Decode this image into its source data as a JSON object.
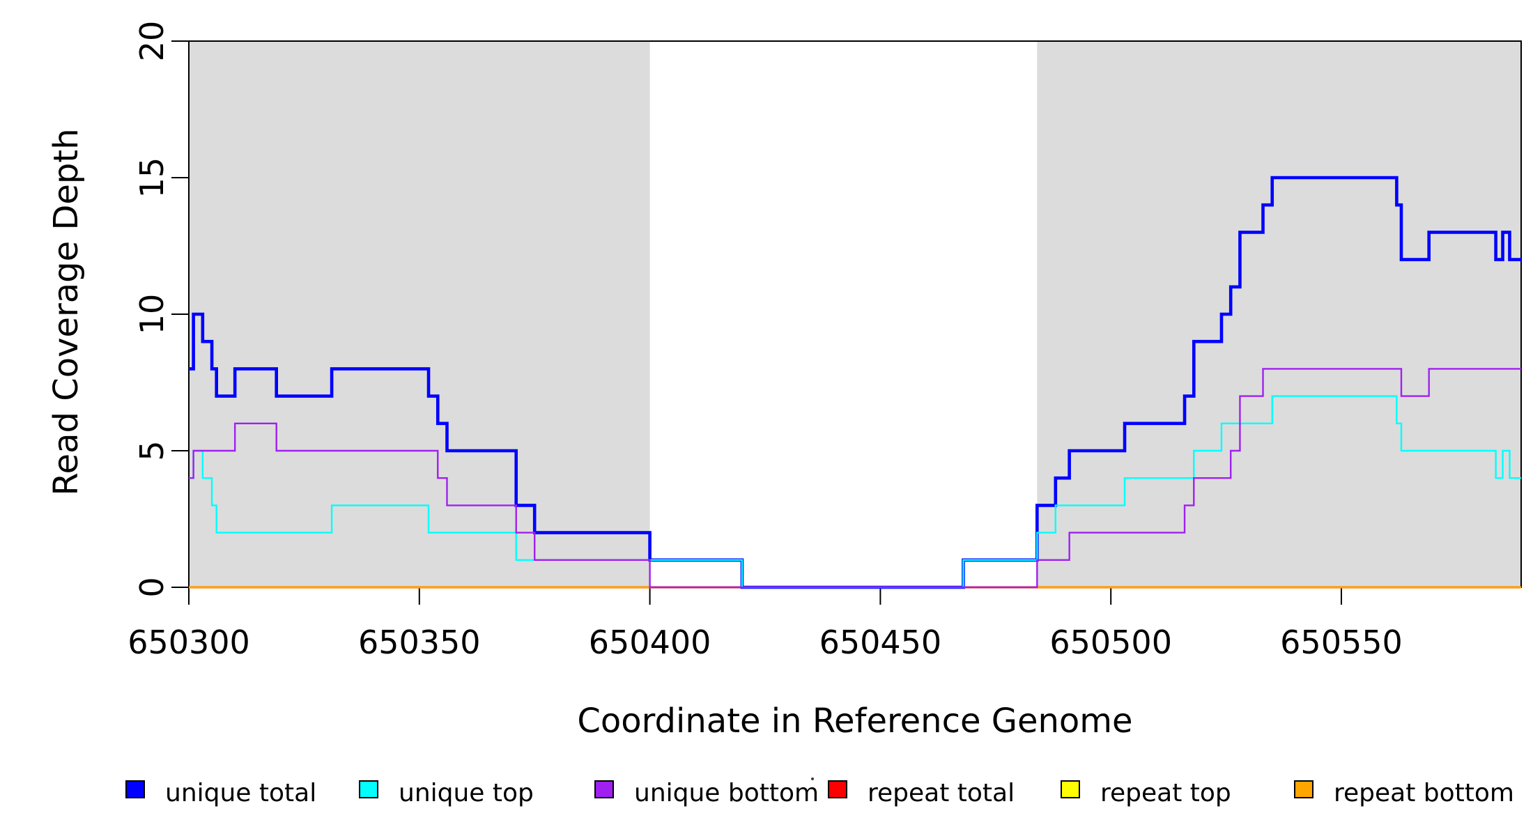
{
  "figure": {
    "x_axis_title": "Coordinate in Reference Genome",
    "y_axis_title": "Read Coverage Depth"
  },
  "legend": [
    {
      "label": "unique total",
      "color": "#0000FF"
    },
    {
      "label": "unique top",
      "color": "#00FFFF"
    },
    {
      "label": "unique bottom",
      "color": "#A020F0"
    },
    {
      "label": "repeat total",
      "color": "#FF0000"
    },
    {
      "label": "repeat top",
      "color": "#FFFF00"
    },
    {
      "label": "repeat bottom",
      "color": "#FFA500"
    }
  ],
  "chart_data": {
    "type": "line",
    "step": true,
    "xlabel": "Coordinate in Reference Genome",
    "ylabel": "Read Coverage Depth",
    "xlim": [
      650300,
      650589
    ],
    "ylim": [
      0,
      20
    ],
    "grid": false,
    "legend_position": "bottom",
    "x_ticks": [
      650300,
      650350,
      650400,
      650450,
      650500,
      650550
    ],
    "x_tick_labels": [
      "650300",
      "650350",
      "650400",
      "650450",
      "650500",
      "650550"
    ],
    "y_ticks": [
      0,
      5,
      10,
      15,
      20
    ],
    "y_tick_labels": [
      "0",
      "5",
      "10",
      "15",
      "20"
    ],
    "shade_color": "#DCDCDC",
    "shaded_regions": [
      {
        "from": 650300,
        "to": 650400
      },
      {
        "from": 650484,
        "to": 650589
      }
    ],
    "series": [
      {
        "name": "repeat top",
        "color": "#FFFF00",
        "width": 2.4,
        "points": [
          [
            650300,
            0
          ]
        ]
      },
      {
        "name": "repeat total",
        "color": "#FF0000",
        "width": 3.2,
        "points": [
          [
            650300,
            0
          ]
        ]
      },
      {
        "name": "repeat bottom",
        "color": "#FFA500",
        "width": 3.0,
        "points": [
          [
            650300,
            0
          ]
        ]
      },
      {
        "name": "unique total",
        "color": "#0000FF",
        "width": 4.6,
        "points": [
          [
            650300,
            8
          ],
          [
            650301,
            10
          ],
          [
            650303,
            9
          ],
          [
            650305,
            8
          ],
          [
            650306,
            7
          ],
          [
            650310,
            8
          ],
          [
            650319,
            7
          ],
          [
            650331,
            8
          ],
          [
            650352,
            7
          ],
          [
            650354,
            6
          ],
          [
            650356,
            5
          ],
          [
            650371,
            3
          ],
          [
            650375,
            2
          ],
          [
            650400,
            1
          ],
          [
            650420,
            0
          ],
          [
            650468,
            1
          ],
          [
            650484,
            3
          ],
          [
            650488,
            4
          ],
          [
            650491,
            5
          ],
          [
            650503,
            6
          ],
          [
            650516,
            7
          ],
          [
            650518,
            9
          ],
          [
            650524,
            10
          ],
          [
            650526,
            11
          ],
          [
            650528,
            13
          ],
          [
            650533,
            14
          ],
          [
            650535,
            15
          ],
          [
            650562,
            14
          ],
          [
            650563,
            12
          ],
          [
            650569,
            13
          ],
          [
            650583.5,
            12
          ],
          [
            650585,
            13
          ],
          [
            650586.5,
            12
          ]
        ]
      },
      {
        "name": "unique top",
        "color": "#00FFFF",
        "width": 2.4,
        "points": [
          [
            650300,
            4
          ],
          [
            650301,
            5
          ],
          [
            650303,
            4
          ],
          [
            650305,
            3
          ],
          [
            650306,
            2
          ],
          [
            650331,
            3
          ],
          [
            650352,
            2
          ],
          [
            650371,
            1
          ],
          [
            650420,
            0
          ],
          [
            650468,
            1
          ],
          [
            650484,
            2
          ],
          [
            650488,
            3
          ],
          [
            650503,
            4
          ],
          [
            650518,
            5
          ],
          [
            650524,
            6
          ],
          [
            650535,
            7
          ],
          [
            650562,
            6
          ],
          [
            650563,
            5
          ],
          [
            650583.5,
            4
          ],
          [
            650585,
            5
          ],
          [
            650586.5,
            4
          ]
        ]
      },
      {
        "name": "unique bottom",
        "color": "#A020F0",
        "width": 2.4,
        "points": [
          [
            650300,
            4
          ],
          [
            650301,
            5
          ],
          [
            650310,
            6
          ],
          [
            650319,
            5
          ],
          [
            650354,
            4
          ],
          [
            650356,
            3
          ],
          [
            650371,
            2
          ],
          [
            650375,
            1
          ],
          [
            650400,
            0
          ],
          [
            650484,
            1
          ],
          [
            650491,
            2
          ],
          [
            650516,
            3
          ],
          [
            650518,
            4
          ],
          [
            650526,
            5
          ],
          [
            650528,
            7
          ],
          [
            650533,
            8
          ],
          [
            650563,
            7
          ],
          [
            650569,
            8
          ]
        ]
      }
    ]
  }
}
